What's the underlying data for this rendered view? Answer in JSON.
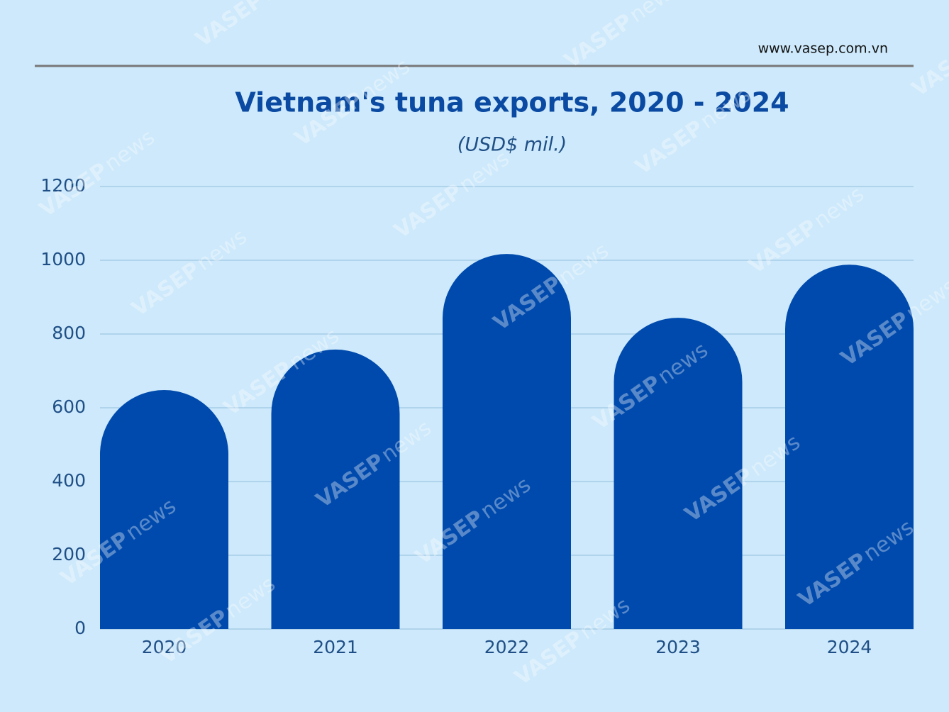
{
  "source": "www.vasep.com.vn",
  "watermark": {
    "brand": "VASEP",
    "tag": "news"
  },
  "chart_data": {
    "type": "bar",
    "title": "Vietnam's tuna exports, 2020 - 2024",
    "subtitle": "(USD$ mil.)",
    "categories": [
      "2020",
      "2021",
      "2022",
      "2023",
      "2024"
    ],
    "values": [
      648,
      758,
      1017,
      844,
      988
    ],
    "color": "#004aad",
    "ylim": [
      0,
      1200
    ],
    "yticks": [
      0,
      200,
      400,
      600,
      800,
      1000,
      1200
    ],
    "grid": true
  }
}
